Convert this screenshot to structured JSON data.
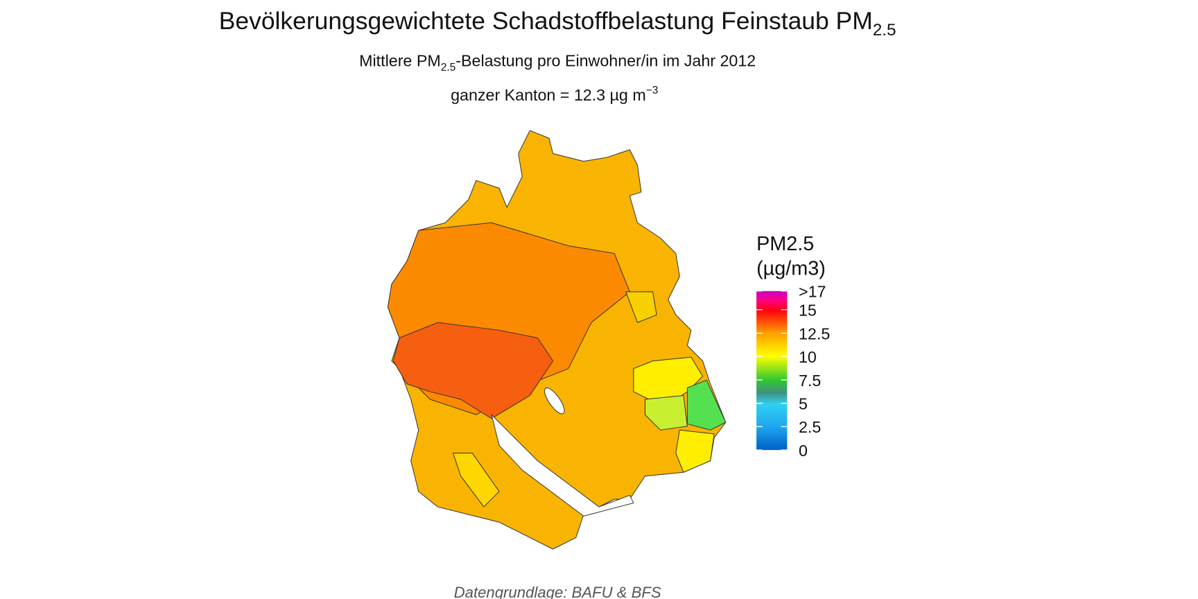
{
  "title": {
    "text": "Bevölkerungsgewichtete Schadstoffbelastung Feinstaub PM",
    "subscript": "2.5"
  },
  "subtitle": {
    "before": "Mittlere PM",
    "subscript": "2.5",
    "after": "-Belastung pro Einwohner/in im Jahr 2012"
  },
  "summary": {
    "text": "ganzer Kanton = 12.3 µg m",
    "superscript": "−3"
  },
  "legend": {
    "title": [
      "PM2.5",
      "(µg/m3)"
    ],
    "lim": [
      0,
      17
    ],
    "ticks": [
      0,
      2.5,
      5,
      7.5,
      10,
      12.5,
      15,
      {
        "value": 17,
        "label": ">17"
      }
    ]
  },
  "caption": "Datengrundlage: BAFU & BFS"
}
